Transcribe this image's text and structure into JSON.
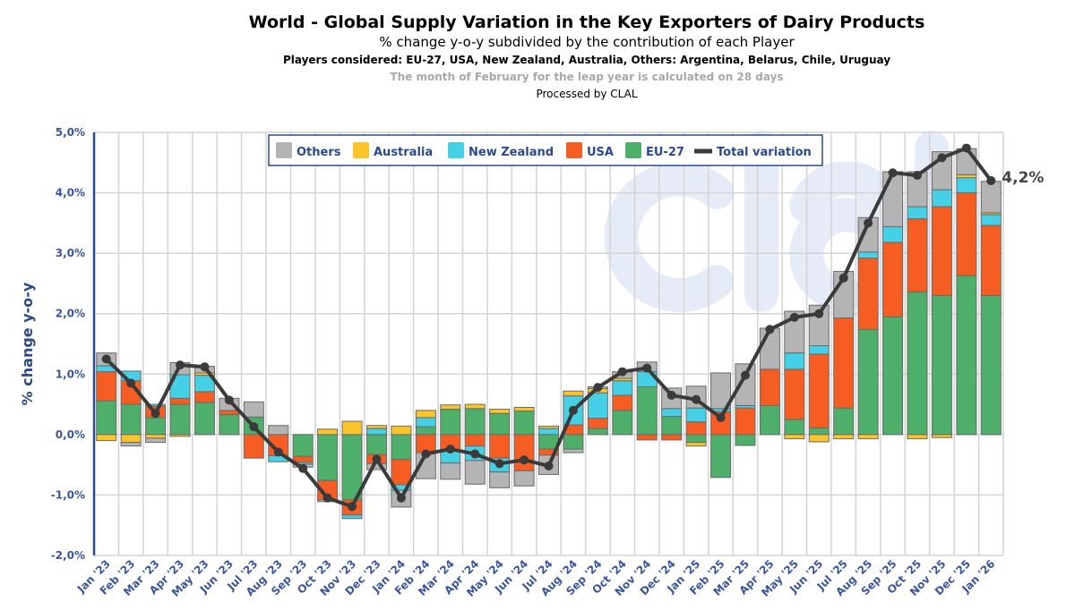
{
  "chart_data": {
    "type": "bar",
    "stacked": true,
    "title": "World - Global Supply Variation in the Key Exporters of Dairy Products",
    "subtitle": "% change y-o-y subdivided by the contribution of each Player",
    "players_note": "Players considered: EU-27, USA, New Zealand, Australia, Others: Argentina, Belarus, Chile, Uruguay",
    "leap_note": "The month of February for the leap year is calculated on 28 days",
    "processed_by": "Processed by CLAL",
    "watermark": "clal",
    "ylabel": "% change y-o-y",
    "ylim": [
      -2,
      5
    ],
    "yticks": [
      "-2,0%",
      "-1,0%",
      "0,0%",
      "1,0%",
      "2,0%",
      "3,0%",
      "4,0%",
      "5,0%"
    ],
    "grid": true,
    "legend_position": "top",
    "end_label": "4,2%",
    "categories": [
      "Jan '23",
      "Feb '23",
      "Mar '23",
      "Apr '23",
      "May '23",
      "Jun '23",
      "Jul '23",
      "Aug '23",
      "Sep '23",
      "Oct '23",
      "Nov '23",
      "Dec '23",
      "Jan '24",
      "Feb '24",
      "Mar '24",
      "Apr '24",
      "May '24",
      "Jun '24",
      "Jul '24",
      "Aug '24",
      "Sep '24",
      "Oct '24",
      "Nov '24",
      "Dec '24",
      "Jan '25",
      "Feb '25",
      "Mar '25",
      "Apr '25",
      "May '25",
      "Jun '25",
      "Jul '25",
      "Aug '25",
      "Sep '25",
      "Oct '25",
      "Nov '25",
      "Dec '25",
      "Jan '26"
    ],
    "series": [
      {
        "name": "EU-27",
        "color": "#4daf6a",
        "values": [
          0.56,
          0.5,
          0.28,
          0.5,
          0.53,
          0.33,
          0.29,
          0,
          -0.36,
          -0.76,
          -1.08,
          -0.33,
          -0.41,
          0.13,
          0.42,
          0.43,
          0.35,
          0.39,
          -0.24,
          -0.24,
          0.1,
          0.4,
          0.79,
          0.3,
          -0.13,
          -0.71,
          -0.18,
          0.48,
          0.25,
          0.11,
          0.44,
          1.74,
          1.95,
          2.36,
          2.3,
          2.63,
          2.3
        ]
      },
      {
        "name": "USA",
        "color": "#f55d22",
        "values": [
          0.48,
          0.39,
          0.19,
          0.1,
          0.18,
          0.07,
          -0.39,
          -0.35,
          -0.1,
          -0.32,
          -0.25,
          -0.15,
          -0.42,
          -0.3,
          -0.27,
          -0.19,
          -0.39,
          -0.6,
          -0.1,
          0.16,
          0.17,
          0.25,
          -0.09,
          -0.09,
          0.21,
          0.38,
          0.44,
          0.6,
          0.83,
          1.22,
          1.49,
          1.18,
          1.23,
          1.21,
          1.47,
          1.37,
          1.16
        ]
      },
      {
        "name": "New Zealand",
        "color": "#45d0e6",
        "values": [
          0.1,
          0.16,
          0.03,
          0.39,
          0.27,
          0,
          0,
          -0.1,
          -0.03,
          0,
          -0.06,
          0.1,
          -0.09,
          0.15,
          -0.2,
          -0.24,
          -0.23,
          0,
          0.1,
          0.48,
          0.42,
          0.24,
          0.25,
          0.13,
          0.23,
          0.05,
          0.04,
          0,
          0.27,
          0.14,
          0,
          0.1,
          0.26,
          0.2,
          0.28,
          0.25,
          0.18
        ]
      },
      {
        "name": "Australia",
        "color": "#fbc42a",
        "values": [
          -0.1,
          -0.13,
          -0.06,
          -0.03,
          0.04,
          0,
          0,
          0,
          0,
          0.09,
          0.22,
          0.05,
          0.14,
          0.12,
          0.07,
          0.07,
          0.07,
          0.06,
          0.04,
          0.08,
          0.07,
          0.04,
          0,
          0,
          -0.06,
          0,
          0,
          0,
          -0.07,
          -0.12,
          -0.07,
          -0.07,
          0,
          -0.07,
          -0.05,
          0.05,
          0.03
        ]
      },
      {
        "name": "Others",
        "color": "#b4b4b4",
        "values": [
          0.21,
          -0.06,
          -0.07,
          0.2,
          0.11,
          0.2,
          0.25,
          0.15,
          -0.05,
          -0.03,
          0,
          -0.1,
          -0.28,
          -0.43,
          -0.27,
          -0.39,
          -0.26,
          -0.25,
          -0.32,
          -0.06,
          0.03,
          0.11,
          0.16,
          0.34,
          0.36,
          0.59,
          0.69,
          0.68,
          0.69,
          0.67,
          0.77,
          0.57,
          0.91,
          0.58,
          0.63,
          0.43,
          0.52
        ]
      }
    ],
    "line": {
      "name": "Total variation",
      "color": "#3a3a3a",
      "values": [
        1.25,
        0.85,
        0.35,
        1.15,
        1.12,
        0.57,
        0.13,
        -0.29,
        -0.56,
        -1.05,
        -1.19,
        -0.41,
        -1.05,
        -0.32,
        -0.24,
        -0.32,
        -0.48,
        -0.42,
        -0.52,
        0.4,
        0.78,
        1.04,
        1.1,
        0.65,
        0.58,
        0.28,
        0.98,
        1.74,
        1.94,
        2.0,
        2.59,
        3.5,
        4.33,
        4.29,
        4.58,
        4.74,
        4.2
      ]
    }
  }
}
